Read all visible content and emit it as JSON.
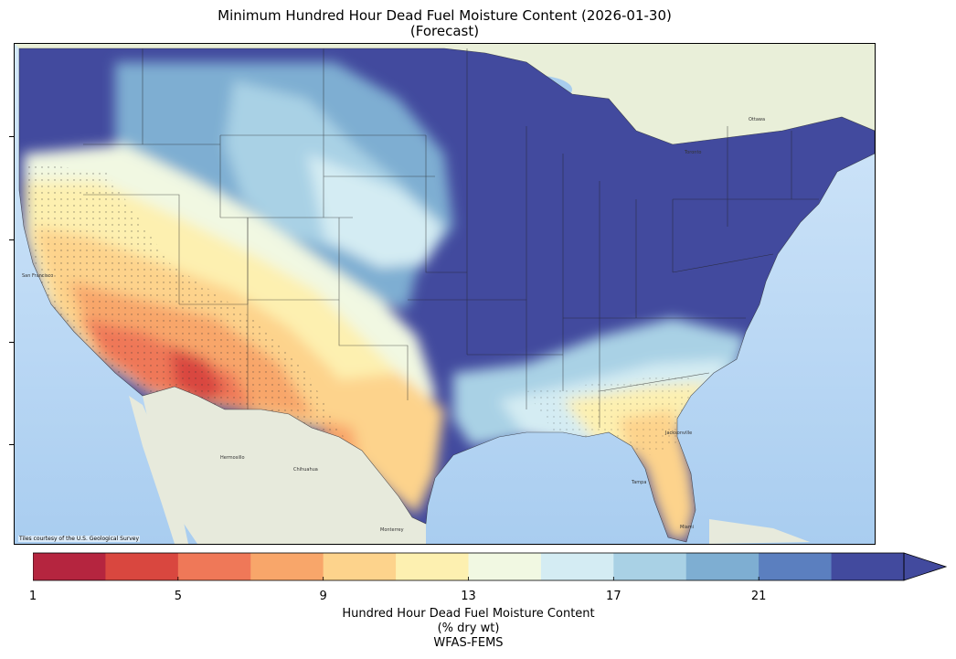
{
  "title": {
    "line1": "Minimum Hundred Hour Dead Fuel Moisture Content (2026-01-30)",
    "line2": "(Forecast)"
  },
  "map": {
    "attribution": "Tiles courtesy of the U.S. Geological Survey",
    "place_labels": {
      "san_francisco": "San Francisco",
      "hermosillo": "Hermosillo",
      "chihuahua": "Chihuahua",
      "monterrey": "Monterrey",
      "ottawa": "Ottawa",
      "toronto": "Toronto",
      "tampa": "Tampa",
      "miami": "Miami",
      "jacksonville": "Jacksonville"
    }
  },
  "colorbar": {
    "tick_labels": [
      "1",
      "5",
      "9",
      "13",
      "17",
      "21"
    ],
    "extend": "max",
    "bins": [
      {
        "from": 1,
        "to": 3,
        "color": "#b5253f"
      },
      {
        "from": 3,
        "to": 5,
        "color": "#d9473f"
      },
      {
        "from": 5,
        "to": 7,
        "color": "#ef7858"
      },
      {
        "from": 7,
        "to": 9,
        "color": "#f8a66a"
      },
      {
        "from": 9,
        "to": 11,
        "color": "#fdd38c"
      },
      {
        "from": 11,
        "to": 13,
        "color": "#fdf0b0"
      },
      {
        "from": 13,
        "to": 15,
        "color": "#f1f8e2"
      },
      {
        "from": 15,
        "to": 17,
        "color": "#d4ecf3"
      },
      {
        "from": 17,
        "to": 19,
        "color": "#a9d1e5"
      },
      {
        "from": 19,
        "to": 21,
        "color": "#7eaed2"
      },
      {
        "from": 21,
        "to": 23,
        "color": "#5b7fbf"
      },
      {
        "from": 23,
        "to": 25,
        "color": "#424a9e"
      }
    ],
    "label_line1": "Hundred Hour Dead Fuel Moisture Content",
    "label_line2": "(% dry wt)",
    "label_line3": "WFAS-FEMS"
  }
}
